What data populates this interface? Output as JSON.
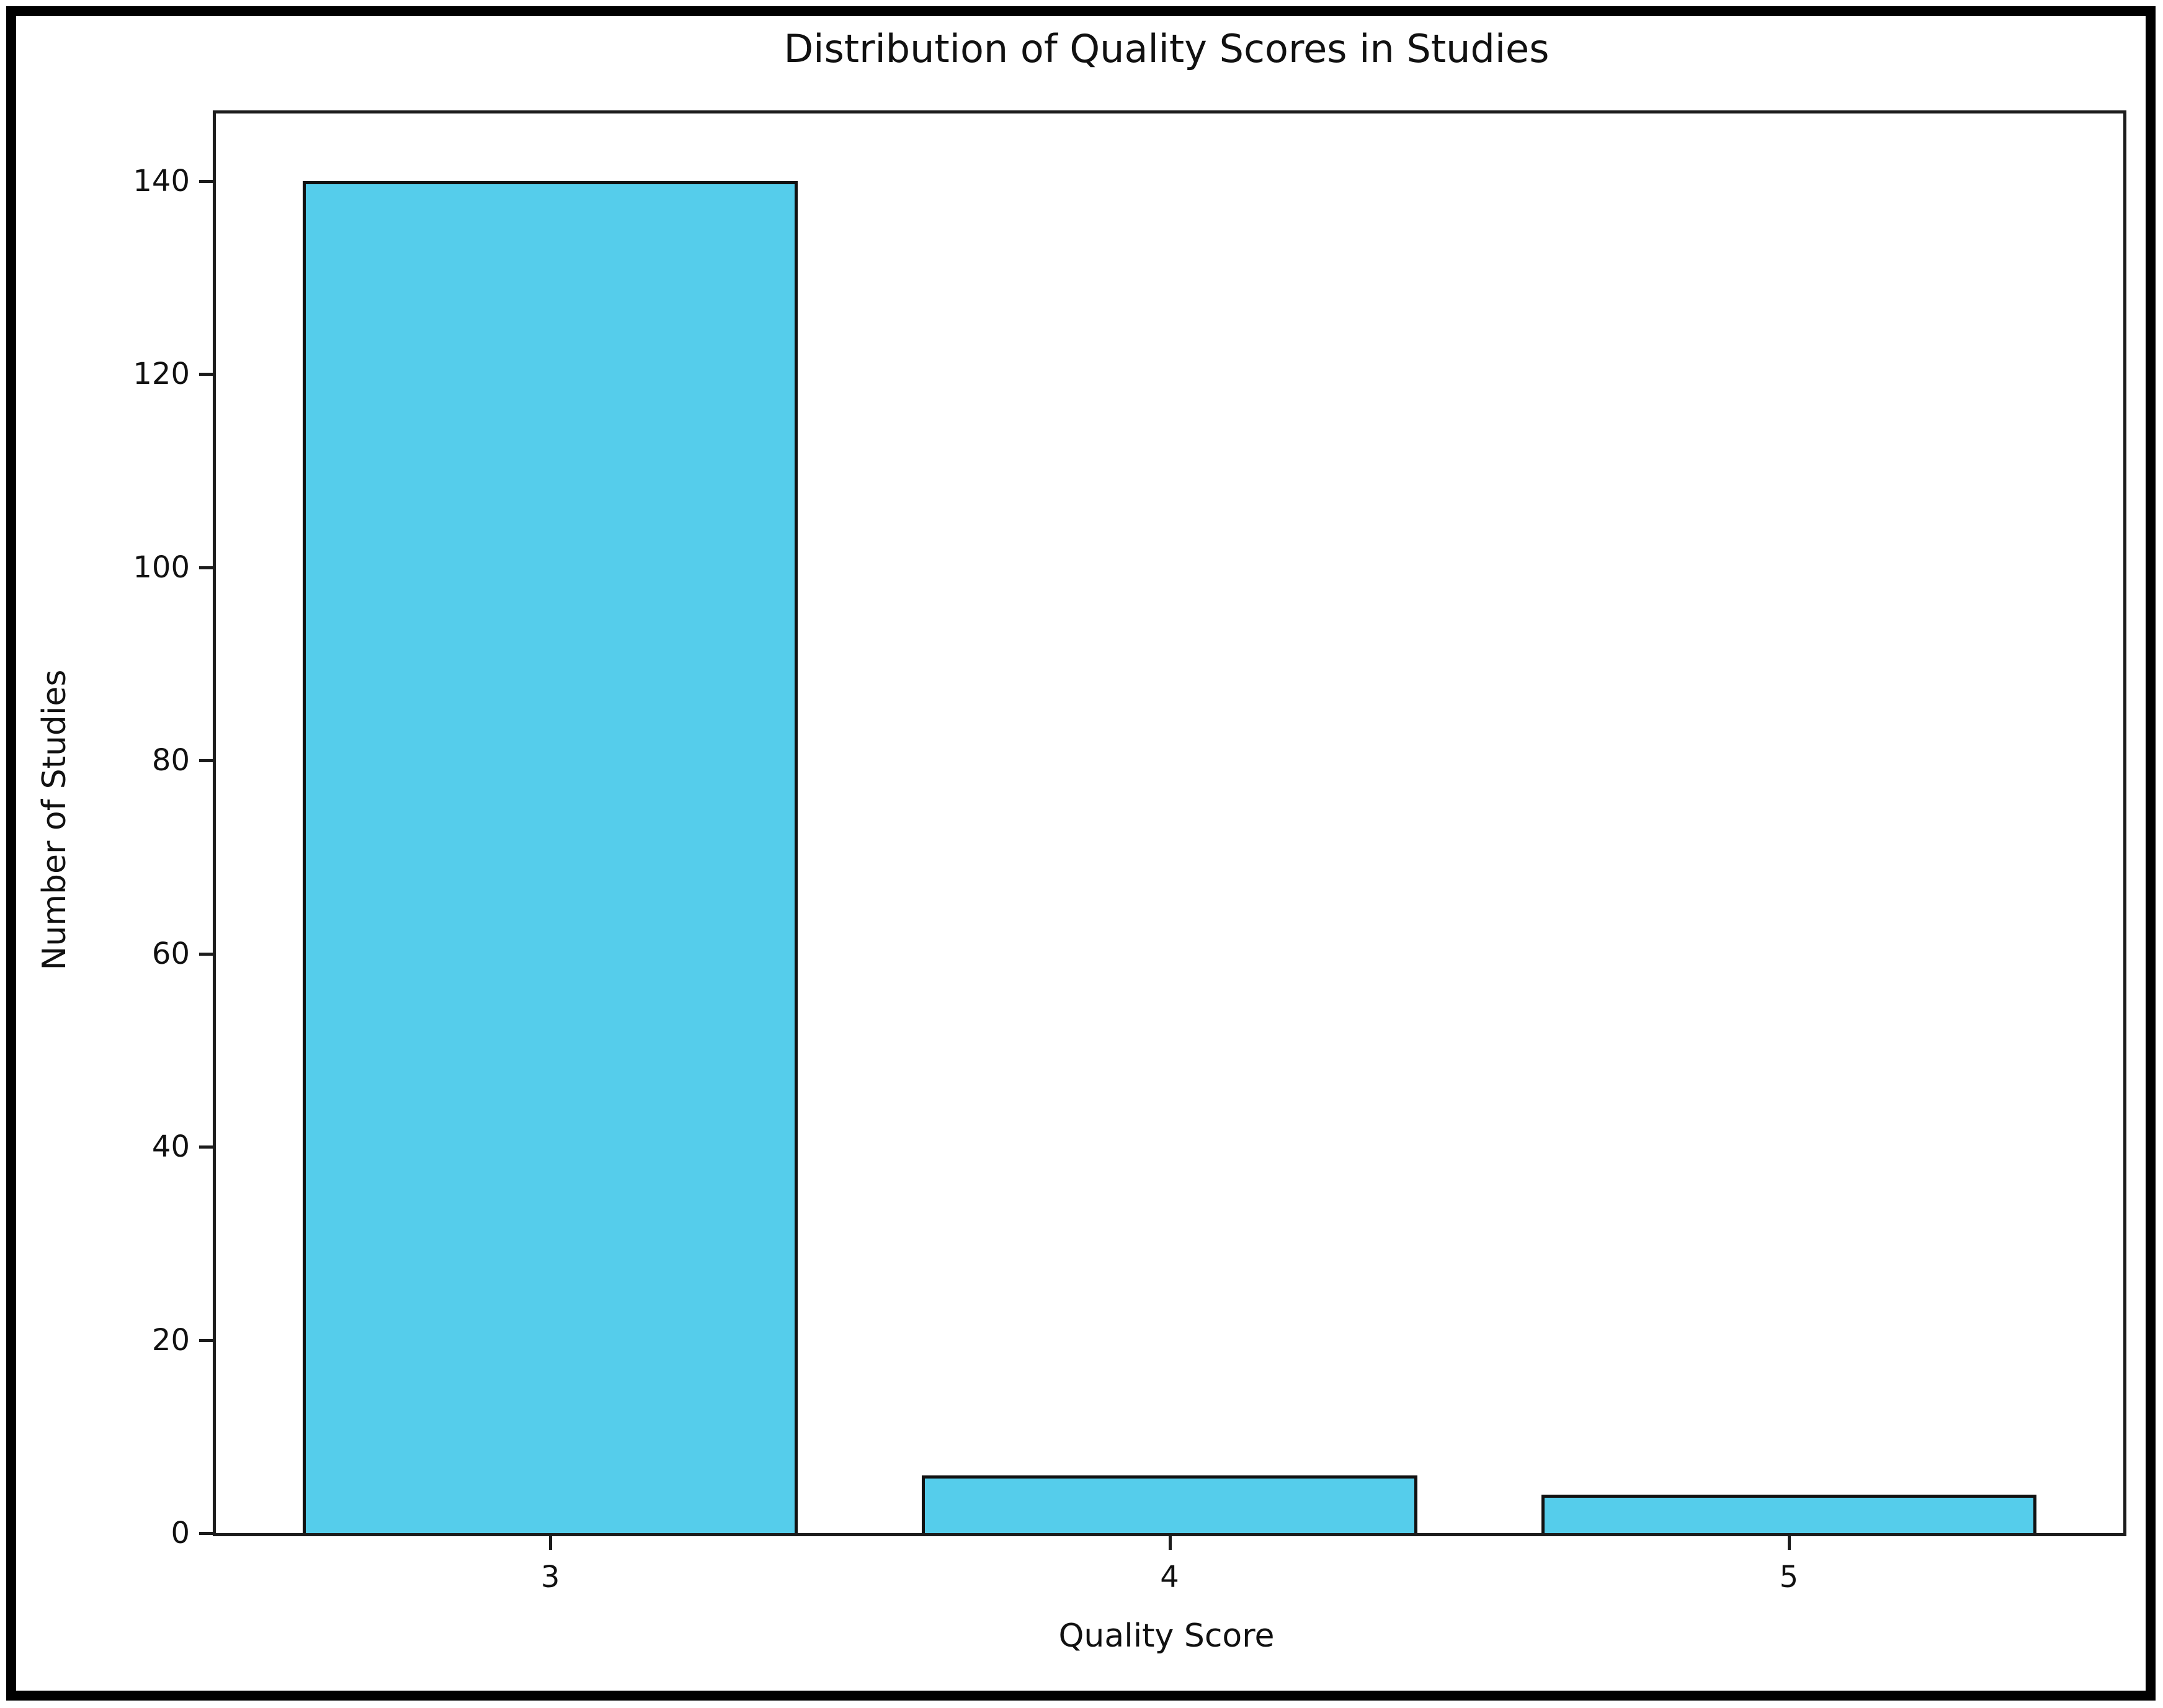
{
  "figure": {
    "title": "Distribution of Quality Scores in Studies",
    "xlabel": "Quality Score",
    "ylabel": "Number of Studies"
  },
  "chart_data": {
    "type": "bar",
    "title": "Distribution of Quality Scores in Studies",
    "xlabel": "Quality Score",
    "ylabel": "Number of Studies",
    "categories": [
      3,
      4,
      5
    ],
    "x_tick_labels": [
      "3",
      "4",
      "5"
    ],
    "values": [
      140,
      6,
      4
    ],
    "y_ticks": [
      0,
      20,
      40,
      60,
      80,
      100,
      120,
      140
    ],
    "ylim": [
      0,
      147
    ],
    "xlim": [
      2.46,
      5.54
    ],
    "bar_width": 0.8,
    "grid": false,
    "legend_position": "none",
    "colors": {
      "bar_fill": "#55CDEB",
      "bar_edge": "#111111",
      "spine": "#1c1c1c",
      "text": "#111111",
      "outer_frame": "#000000",
      "background": "#ffffff"
    }
  }
}
